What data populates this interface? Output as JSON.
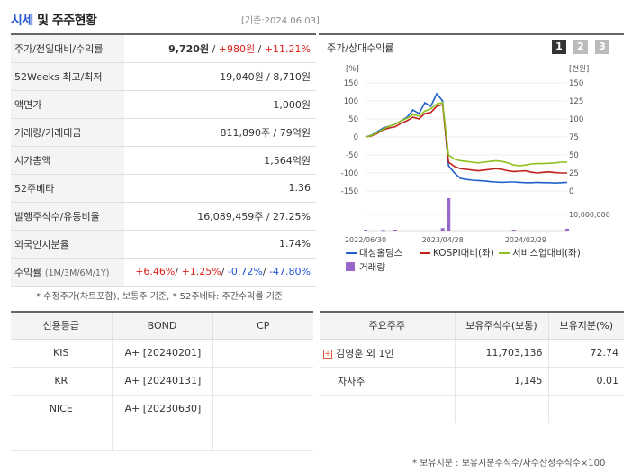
{
  "header": {
    "title_part1": "시세",
    "title_part2": "및 주주현황",
    "basis_date": "[기준:2024.06.03]"
  },
  "quote_rows": [
    {
      "label": "주가/전일대비/수익률",
      "parts": [
        {
          "text": "9,720원",
          "cls": "bold"
        },
        {
          "text": " / ",
          "cls": ""
        },
        {
          "text": "+980원",
          "cls": "red"
        },
        {
          "text": " / ",
          "cls": ""
        },
        {
          "text": "+11.21%",
          "cls": "red"
        }
      ]
    },
    {
      "label": "52Weeks 최고/최저",
      "parts": [
        {
          "text": "19,040원 / 8,710원",
          "cls": ""
        }
      ]
    },
    {
      "label": "액면가",
      "parts": [
        {
          "text": "1,000원",
          "cls": ""
        }
      ]
    },
    {
      "label": "거래량/거래대금",
      "parts": [
        {
          "text": "811,890주 / 79억원",
          "cls": ""
        }
      ]
    },
    {
      "label": "시가총액",
      "parts": [
        {
          "text": "1,564억원",
          "cls": ""
        }
      ]
    },
    {
      "label": "52주베타",
      "parts": [
        {
          "text": "1.36",
          "cls": ""
        }
      ]
    },
    {
      "label": "발행주식수/유동비율",
      "parts": [
        {
          "text": "16,089,459주 / 27.25%",
          "cls": ""
        }
      ]
    },
    {
      "label": "외국인지분율",
      "parts": [
        {
          "text": "1.74%",
          "cls": ""
        }
      ]
    },
    {
      "label": "수익률",
      "label_small": "(1M/3M/6M/1Y)",
      "parts": [
        {
          "text": "+6.46%",
          "cls": "red"
        },
        {
          "text": "/ ",
          "cls": ""
        },
        {
          "text": "+1.25%",
          "cls": "red"
        },
        {
          "text": "/ ",
          "cls": ""
        },
        {
          "text": "-0.72%",
          "cls": "blue2"
        },
        {
          "text": "/ ",
          "cls": ""
        },
        {
          "text": "-47.80%",
          "cls": "blue2"
        }
      ]
    }
  ],
  "notes_text": "* 수정주가(차트포함), 보통주 기준, * 52주베타: 주간수익률 기준",
  "basis_date_bottom": "[기준: 2024.06.03]",
  "chart_panel": {
    "title": "주가/상대수익률",
    "period_buttons": [
      "1",
      "2",
      "3"
    ],
    "active_period": "1"
  },
  "chart_data": {
    "type": "line",
    "left_unit": "[%]",
    "right_unit": "[천원]",
    "left_ticks": [
      150,
      100,
      50,
      0,
      -50,
      -100,
      -150
    ],
    "right_ticks": [
      150,
      125,
      100,
      75,
      50,
      25,
      0
    ],
    "ylim_left": [
      -150,
      150
    ],
    "volume_tick": "10,000,000",
    "x_tick_labels": [
      "2022/06/30",
      "2023/04/28",
      "2024/02/29"
    ],
    "series": [
      {
        "name": "대성홀딩스",
        "color": "#2060c8",
        "x": [
          0,
          1,
          2,
          3,
          4,
          5,
          6,
          7,
          8,
          9,
          10,
          11,
          12,
          13,
          14,
          15,
          16,
          17,
          18,
          19,
          20,
          21,
          22,
          23,
          24,
          25,
          26,
          27,
          28,
          29,
          30,
          31,
          32,
          33,
          34
        ],
        "values": [
          0,
          5,
          15,
          25,
          30,
          35,
          45,
          55,
          75,
          65,
          95,
          85,
          120,
          100,
          -80,
          -100,
          -115,
          -118,
          -120,
          -121,
          -122,
          -124,
          -125,
          -126,
          -125,
          -125,
          -126,
          -127,
          -127,
          -126,
          -127,
          -127,
          -128,
          -127,
          -126
        ]
      },
      {
        "name": "KOSPI대비(좌)",
        "color": "#c0201a",
        "x": [
          0,
          1,
          2,
          3,
          4,
          5,
          6,
          7,
          8,
          9,
          10,
          11,
          12,
          13,
          14,
          15,
          16,
          17,
          18,
          19,
          20,
          21,
          22,
          23,
          24,
          25,
          26,
          27,
          28,
          29,
          30,
          31,
          32,
          33,
          34
        ],
        "values": [
          0,
          3,
          10,
          20,
          25,
          28,
          38,
          45,
          55,
          50,
          65,
          68,
          85,
          90,
          -70,
          -82,
          -88,
          -90,
          -92,
          -94,
          -92,
          -90,
          -88,
          -90,
          -94,
          -96,
          -95,
          -94,
          -98,
          -100,
          -98,
          -97,
          -99,
          -100,
          -100
        ]
      },
      {
        "name": "서비스업대비(좌)",
        "color": "#8cc01e",
        "x": [
          0,
          1,
          2,
          3,
          4,
          5,
          6,
          7,
          8,
          9,
          10,
          11,
          12,
          13,
          14,
          15,
          16,
          17,
          18,
          19,
          20,
          21,
          22,
          23,
          24,
          25,
          26,
          27,
          28,
          29,
          30,
          31,
          32,
          33,
          34
        ],
        "values": [
          0,
          4,
          12,
          22,
          30,
          35,
          45,
          52,
          62,
          58,
          72,
          78,
          92,
          95,
          -50,
          -62,
          -66,
          -68,
          -70,
          -72,
          -70,
          -68,
          -66,
          -68,
          -72,
          -78,
          -80,
          -78,
          -75,
          -74,
          -74,
          -73,
          -72,
          -70,
          -70
        ]
      }
    ],
    "volume_series": {
      "name": "거래량",
      "color": "#9966cc",
      "x": [
        0,
        3,
        5,
        13,
        14,
        25,
        34
      ],
      "values": [
        0.3,
        0.2,
        0.3,
        0.8,
        10.5,
        0.3,
        0.6
      ]
    }
  },
  "credit_table": {
    "headers": [
      "신용등급",
      "BOND",
      "CP"
    ],
    "rows": [
      [
        "KIS",
        "A+  [20240201]",
        ""
      ],
      [
        "KR",
        "A+  [20240131]",
        ""
      ],
      [
        "NICE",
        "A+  [20230630]",
        ""
      ],
      [
        "",
        "",
        ""
      ]
    ]
  },
  "holders_table": {
    "headers": [
      "주요주주",
      "보유주식수(보통)",
      "보유지분(%)"
    ],
    "rows": [
      {
        "name": "김영훈 외 1인",
        "expand": "+",
        "shares": "11,703,136",
        "pct": "72.74"
      },
      {
        "name": "자사주",
        "expand": "",
        "shares": "1,145",
        "pct": "0.01"
      }
    ],
    "footnote": "* 보유지분 : 보유지분주식수/자수산정주식수×100"
  }
}
